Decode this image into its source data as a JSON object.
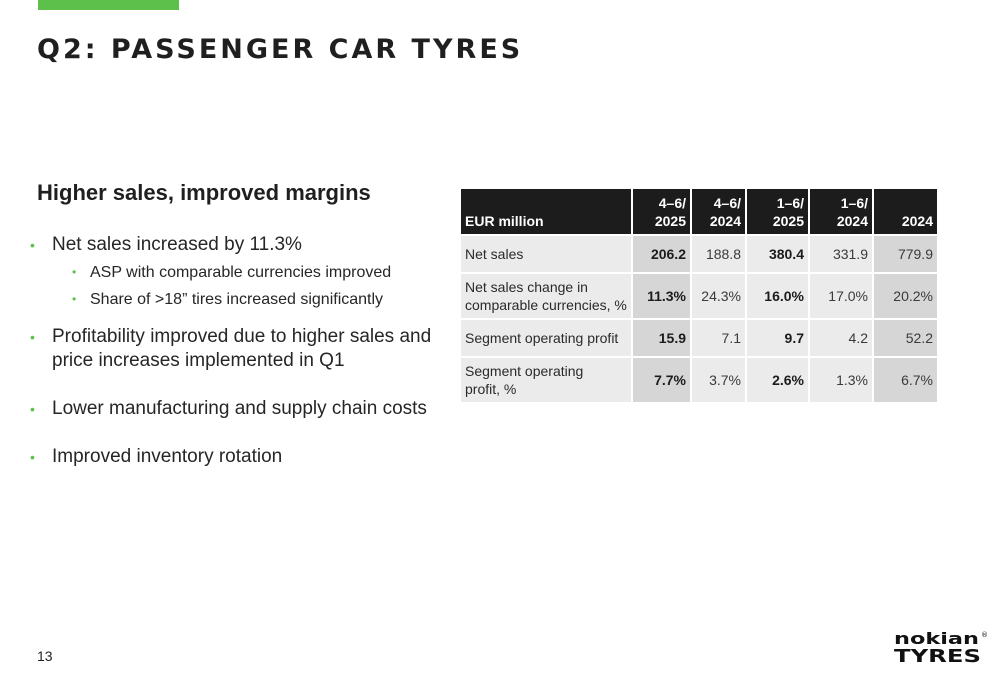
{
  "slide": {
    "title": "Q2: PASSENGER CAR TYRES",
    "subhead": "Higher sales, improved margins",
    "bullets": [
      {
        "text": "Net sales increased by 11.3%",
        "level": 1
      },
      {
        "text": "ASP with comparable currencies improved",
        "level": 2
      },
      {
        "text": "Share of >18” tires increased significantly",
        "level": 2
      },
      {
        "text": "Profitability improved due to higher sales and price increases implemented in Q1",
        "level": 1
      },
      {
        "text": "Lower manufacturing and supply chain costs",
        "level": 1
      },
      {
        "text": "Improved inventory rotation",
        "level": 1
      }
    ],
    "bullet_symbol": "•",
    "page_number": "13",
    "colors": {
      "accent": "#5dc04a",
      "header_bg": "#1c1c1c",
      "cell_bg": "#ebebeb",
      "highlight_bg": "#d6d6d6"
    }
  },
  "table": {
    "header_label": "EUR million",
    "columns": [
      {
        "top": "4–6/",
        "bottom": "2025"
      },
      {
        "top": "4–6/",
        "bottom": "2024"
      },
      {
        "top": "1–6/",
        "bottom": "2025"
      },
      {
        "top": "1–6/",
        "bottom": "2024"
      },
      {
        "top": "",
        "bottom": "2024"
      }
    ],
    "rows": [
      {
        "label_1": "Net sales",
        "label_2": "",
        "values": [
          "206.2",
          "188.8",
          "380.4",
          "331.9",
          "779.9"
        ]
      },
      {
        "label_1": "Net sales change in",
        "label_2": "comparable currencies, %",
        "values": [
          "11.3%",
          "24.3%",
          "16.0%",
          "17.0%",
          "20.2%"
        ]
      },
      {
        "label_1": "Segment operating profit",
        "label_2": "",
        "values": [
          "15.9",
          "7.1",
          "9.7",
          "4.2",
          "52.2"
        ]
      },
      {
        "label_1": "Segment operating",
        "label_2": "profit, %",
        "values": [
          "7.7%",
          "3.7%",
          "2.6%",
          "1.3%",
          "6.7%"
        ]
      }
    ]
  },
  "logo": {
    "line1": "nokian",
    "line2": "TYRES",
    "mark": "®"
  }
}
